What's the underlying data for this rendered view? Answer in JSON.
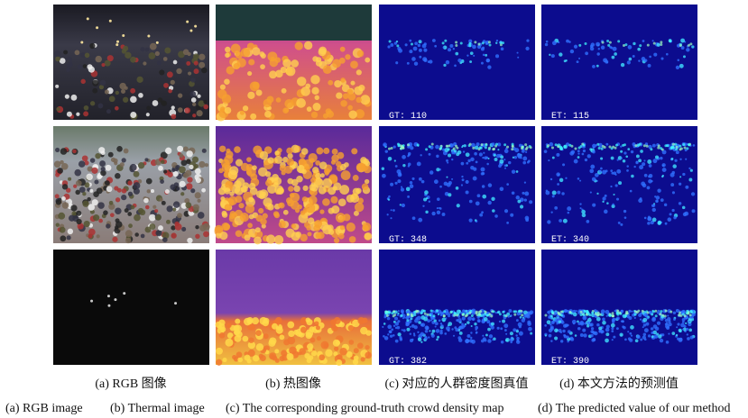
{
  "figure": {
    "rows": [
      {
        "gt": "GT: 110",
        "et": "ET: 115"
      },
      {
        "gt": "GT: 348",
        "et": "ET: 340"
      },
      {
        "gt": "GT: 382",
        "et": "ET: 390"
      }
    ],
    "captions_zh": [
      "(a) RGB 图像",
      "(b)  热图像",
      "(c)  对应的人群密度图真值",
      "(d)  本文方法的预测值"
    ],
    "captions_en": [
      "(a) RGB image",
      "(b) Thermal image",
      "(c) The corresponding ground-truth crowd density map",
      "(d) The predicted value of our method"
    ]
  }
}
